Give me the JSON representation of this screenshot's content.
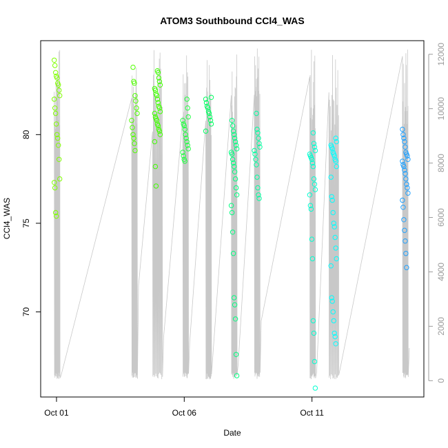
{
  "chart_data": {
    "type": "scatter",
    "title": "ATOM3 Southbound CCl4_WAS",
    "xlabel": "Date",
    "ylabel": "CCl4_WAS",
    "x_ticks": [
      {
        "label": "Oct 01",
        "day": 1
      },
      {
        "label": "Oct 06",
        "day": 6
      },
      {
        "label": "Oct 11",
        "day": 11
      }
    ],
    "y_ticks": [
      70,
      75,
      80
    ],
    "y2_ticks": [
      0,
      2000,
      4000,
      6000,
      8000,
      10000,
      12000
    ],
    "xlim_days": [
      0.38,
      15.38
    ],
    "ylim": [
      65.2,
      85.3
    ],
    "y2lim": [
      -600,
      12500
    ],
    "grid": false,
    "legend": "none",
    "colors": {
      "line": "#c8c8c8",
      "box": "#000000",
      "right_axis": "#9a9a9a",
      "group_palette": [
        "#80ff00",
        "#40ff00",
        "#00ff80",
        "#00ffd0",
        "#00ffff",
        "#1ea0ff"
      ]
    },
    "groups": [
      {
        "day": 1.02,
        "color": "#80ff00",
        "y": [
          84.2,
          83.9,
          83.5,
          83.3,
          83.2,
          82.9,
          82.8,
          82.5,
          82.2,
          82.0,
          81.5,
          81.2,
          80.6,
          80.0,
          79.8,
          79.4,
          78.6,
          77.5,
          77.3,
          77.0,
          75.6,
          75.4
        ]
      },
      {
        "day": 4.05,
        "color": "#50ff00",
        "y": [
          83.8,
          83.0,
          82.9,
          82.2,
          81.9,
          81.5,
          81.2,
          80.8,
          80.4,
          80.0,
          79.8,
          79.5,
          79.1
        ]
      },
      {
        "day": 4.95,
        "color": "#40ff00",
        "y": [
          83.6,
          83.5,
          83.2,
          83.0,
          82.8,
          82.6,
          82.5,
          82.3,
          82.2,
          82.0,
          81.8,
          81.6,
          81.5,
          81.3,
          81.2,
          81.0,
          80.9,
          80.8,
          80.6,
          80.5,
          80.3,
          80.2,
          80.0,
          79.6,
          78.2,
          77.1
        ]
      },
      {
        "day": 6.05,
        "color": "#20ff40",
        "y": [
          82.0,
          81.5,
          81.0,
          80.8,
          80.6,
          80.5,
          80.3,
          80.0,
          79.8,
          79.6,
          79.4,
          79.2,
          79.0,
          78.8,
          78.6,
          78.5
        ]
      },
      {
        "day": 6.95,
        "color": "#00ff60",
        "y": [
          82.1,
          82.0,
          81.8,
          81.6,
          81.5,
          81.3,
          81.2,
          81.0,
          80.8,
          80.6,
          80.2
        ]
      },
      {
        "day": 7.95,
        "color": "#00ff80",
        "y": [
          80.8,
          80.5,
          80.2,
          80.0,
          79.8,
          79.6,
          79.4,
          79.2,
          79.0,
          78.9,
          78.6,
          78.4,
          78.2,
          77.9,
          77.5,
          77.0,
          76.6,
          76.0,
          75.6,
          74.5,
          73.3,
          70.8,
          70.4,
          69.6,
          67.6,
          66.4
        ]
      },
      {
        "day": 8.85,
        "color": "#00ffa0",
        "y": [
          81.2,
          80.3,
          80.1,
          79.8,
          79.5,
          79.3,
          79.1,
          78.9,
          78.6,
          78.3,
          77.6,
          77.0,
          76.6,
          76.4
        ]
      },
      {
        "day": 11.02,
        "color": "#00ffd0",
        "y": [
          80.1,
          79.5,
          79.3,
          79.1,
          78.9,
          78.8,
          78.7,
          78.6,
          78.4,
          78.2,
          77.5,
          77.2,
          76.9,
          76.6,
          76.0,
          75.8,
          74.1,
          73.0,
          69.5,
          68.8,
          67.2,
          65.7
        ]
      },
      {
        "day": 11.85,
        "color": "#00ffff",
        "y": [
          79.8,
          79.6,
          79.4,
          79.3,
          79.2,
          79.0,
          78.9,
          78.8,
          78.6,
          78.5,
          78.2,
          77.6,
          76.5,
          76.3,
          75.6,
          75.0,
          74.8,
          74.2,
          73.6,
          73.0,
          72.6,
          70.8,
          70.6,
          70.0,
          69.5,
          68.8,
          68.6,
          68.2
        ]
      },
      {
        "day": 14.65,
        "color": "#1ea0ff",
        "y": [
          80.3,
          80.0,
          79.8,
          79.6,
          79.3,
          79.0,
          78.9,
          78.8,
          78.6,
          78.5,
          78.3,
          78.2,
          78.0,
          77.8,
          77.5,
          77.2,
          77.0,
          76.7,
          76.3,
          75.9,
          75.2,
          74.6,
          74.0,
          73.3,
          72.5
        ]
      }
    ]
  }
}
